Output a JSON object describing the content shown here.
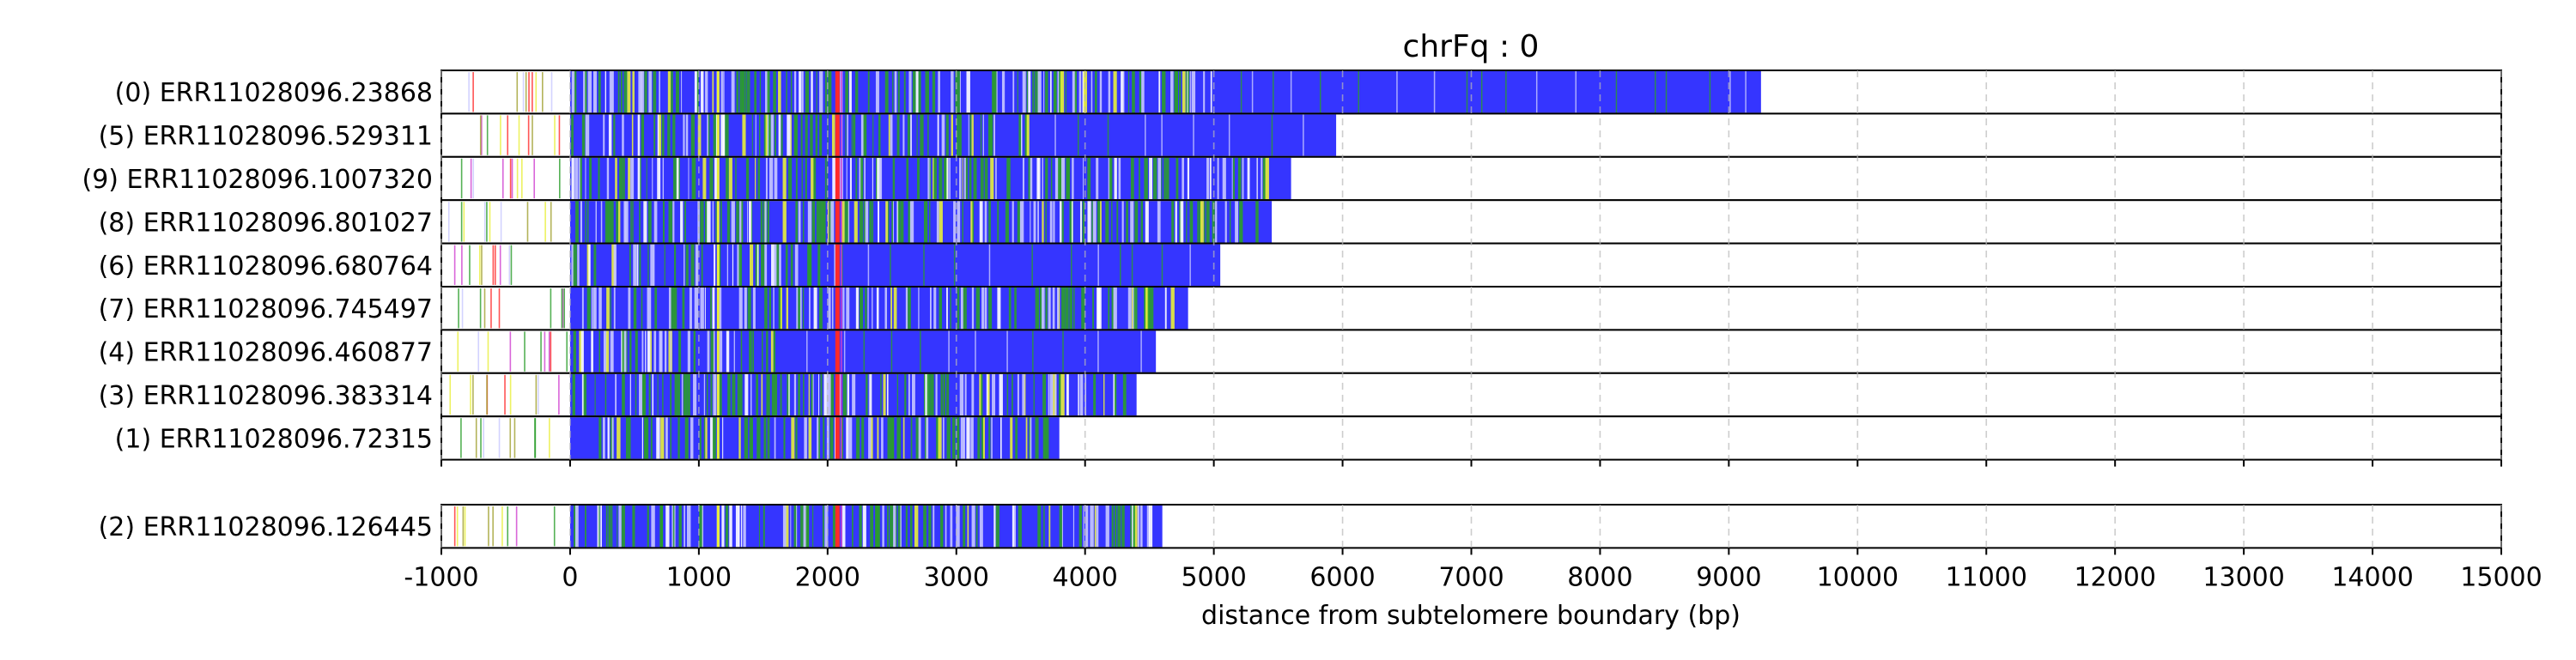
{
  "chart_data": {
    "type": "bar",
    "orientation": "horizontal",
    "title": "chrFq : 0",
    "xlabel": "distance from subtelomere boundary (bp)",
    "ylabel": "",
    "xlim": [
      -1000,
      15000
    ],
    "x_ticks": [
      -1000,
      0,
      1000,
      2000,
      3000,
      4000,
      5000,
      6000,
      7000,
      8000,
      9000,
      10000,
      11000,
      12000,
      13000,
      14000,
      15000
    ],
    "grid": "vertical dashed",
    "colors": {
      "main": "#3535ff",
      "green": "#2a9d2a",
      "light": "#c8c8ff",
      "yellow": "#e8ef3a",
      "red": "#ff2a2a",
      "magenta": "#d040d0",
      "olive": "#a0a030",
      "white": "#ffffff"
    },
    "groups": [
      {
        "rows": [
          {
            "label": "(0) ERR11028096.23868",
            "read_end": 9250,
            "dense_green_to": 5000
          },
          {
            "label": "(5) ERR11028096.529311",
            "read_end": 5950,
            "dense_green_to": 3600
          },
          {
            "label": "(9) ERR11028096.1007320",
            "read_end": 5600,
            "dense_green_to": 5400
          },
          {
            "label": "(8) ERR11028096.801027",
            "read_end": 5450,
            "dense_green_to": 5400
          },
          {
            "label": "(6) ERR11028096.680764",
            "read_end": 5050,
            "dense_green_to": 2200
          },
          {
            "label": "(7) ERR11028096.745497",
            "read_end": 4800,
            "dense_green_to": 4700
          },
          {
            "label": "(4) ERR11028096.460877",
            "read_end": 4550,
            "dense_green_to": 1600
          },
          {
            "label": "(3) ERR11028096.383314",
            "read_end": 4400,
            "dense_green_to": 4300
          },
          {
            "label": "(1) ERR11028096.72315",
            "read_end": 3800,
            "dense_green_to": 3700
          }
        ]
      },
      {
        "rows": [
          {
            "label": "(2) ERR11028096.126445",
            "read_end": 4600,
            "dense_green_to": 4500
          }
        ]
      }
    ]
  }
}
